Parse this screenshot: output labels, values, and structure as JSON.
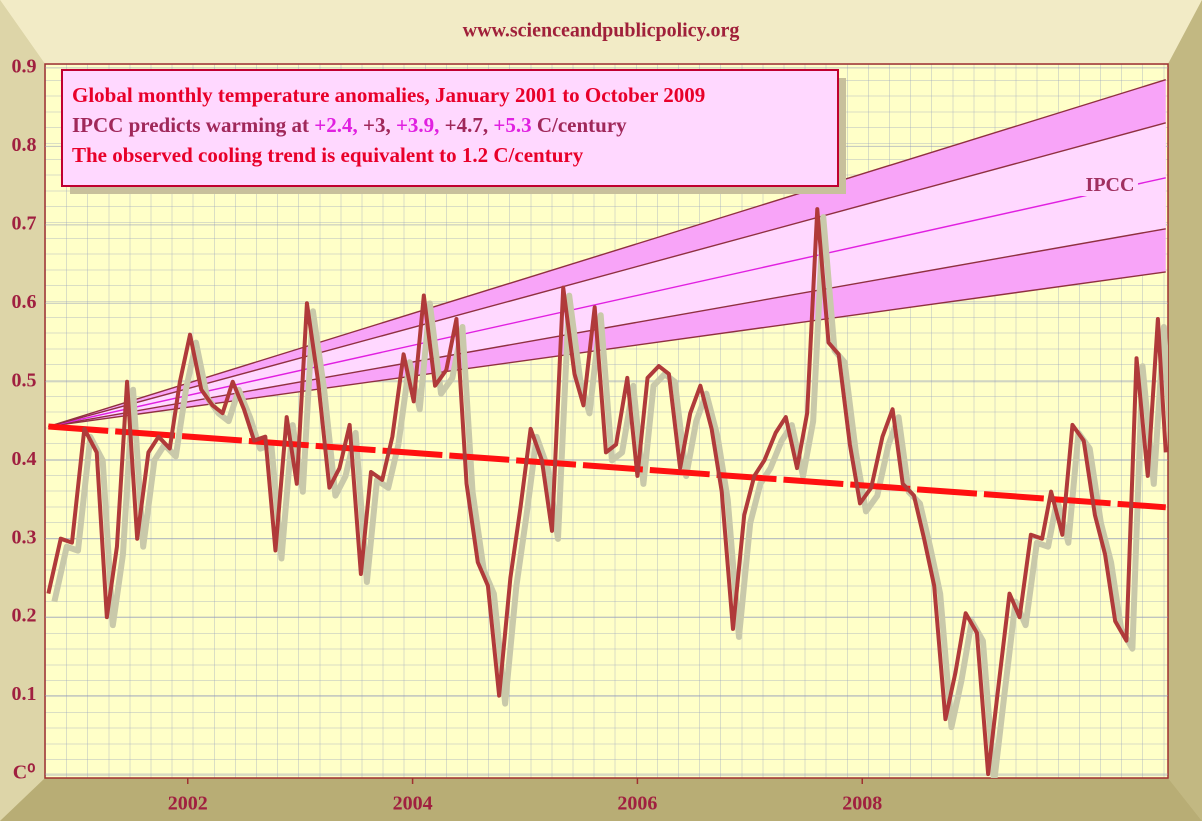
{
  "header": "www.scienceandpublicpolicy.org",
  "chart_data": {
    "type": "line",
    "title_lines": [
      {
        "text": "Global monthly temperature anomalies, January 2001 to October 2009",
        "color": "#e8002a"
      },
      {
        "parts": [
          {
            "text": "IPCC predicts warming at ",
            "color": "#a0285a"
          },
          {
            "text": "+2.4,",
            "color": "#e020e0"
          },
          {
            "text": " +3,",
            "color": "#a0285a"
          },
          {
            "text": " +3.9,",
            "color": "#e020e0"
          },
          {
            "text": " +4.7,",
            "color": "#a0285a"
          },
          {
            "text": " +5.3",
            "color": "#e020e0"
          },
          {
            "text": " C/century",
            "color": "#a0285a"
          }
        ]
      },
      {
        "text": "The observed cooling trend is equivalent to 1.2 C/century",
        "color": "#e8002a"
      }
    ],
    "xlim": [
      2000.73,
      2010.72
    ],
    "xticks": [
      2002,
      2004,
      2006,
      2008
    ],
    "ylim": [
      -0.005,
      0.905
    ],
    "yticks": [
      {
        "value": 0,
        "label": "C⁰"
      },
      0.1,
      0.2,
      0.3,
      0.4,
      0.5,
      0.6,
      0.7,
      0.8,
      0.9
    ],
    "grid": true,
    "series": [
      {
        "color": "#b03a3a",
        "shadow_color": "#c9c9aa",
        "x": [
          2000.76,
          2000.87,
          2000.97,
          2001.08,
          2001.19,
          2001.28,
          2001.37,
          2001.46,
          2001.55,
          2001.65,
          2001.74,
          2001.84,
          2001.93,
          2002.02,
          2002.12,
          2002.22,
          2002.31,
          2002.4,
          2002.5,
          2002.59,
          2002.69,
          2002.78,
          2002.88,
          2002.97,
          2003.06,
          2003.16,
          2003.26,
          2003.35,
          2003.44,
          2003.54,
          2003.63,
          2003.73,
          2003.82,
          2003.92,
          2004.01,
          2004.1,
          2004.2,
          2004.3,
          2004.39,
          2004.48,
          2004.58,
          2004.67,
          2004.77,
          2004.87,
          2004.96,
          2005.05,
          2005.15,
          2005.24,
          2005.34,
          2005.44,
          2005.52,
          2005.62,
          2005.72,
          2005.81,
          2005.91,
          2006.0,
          2006.09,
          2006.19,
          2006.28,
          2006.38,
          2006.47,
          2006.56,
          2006.66,
          2006.75,
          2006.85,
          2006.95,
          2007.04,
          2007.13,
          2007.23,
          2007.32,
          2007.42,
          2007.51,
          2007.6,
          2007.7,
          2007.79,
          2007.89,
          2007.98,
          2008.08,
          2008.18,
          2008.27,
          2008.36,
          2008.46,
          2008.55,
          2008.64,
          2008.74,
          2008.83,
          2008.92,
          2009.02,
          2009.12,
          2009.21,
          2009.31,
          2009.4,
          2009.5,
          2009.6,
          2009.68,
          2009.78,
          2009.87,
          2009.97,
          2010.07,
          2010.16,
          2010.25,
          2010.35,
          2010.44,
          2010.54,
          2010.63,
          2010.7
        ],
        "values": [
          0.23,
          0.3,
          0.295,
          0.44,
          0.41,
          0.2,
          0.29,
          0.5,
          0.3,
          0.41,
          0.43,
          0.415,
          0.5,
          0.56,
          0.49,
          0.47,
          0.46,
          0.5,
          0.465,
          0.425,
          0.43,
          0.285,
          0.455,
          0.37,
          0.6,
          0.5,
          0.365,
          0.39,
          0.445,
          0.255,
          0.385,
          0.375,
          0.43,
          0.535,
          0.475,
          0.61,
          0.495,
          0.515,
          0.58,
          0.37,
          0.27,
          0.24,
          0.1,
          0.25,
          0.34,
          0.44,
          0.4,
          0.31,
          0.62,
          0.51,
          0.47,
          0.595,
          0.41,
          0.42,
          0.505,
          0.38,
          0.505,
          0.52,
          0.51,
          0.39,
          0.46,
          0.495,
          0.44,
          0.36,
          0.185,
          0.33,
          0.38,
          0.4,
          0.435,
          0.455,
          0.39,
          0.46,
          0.72,
          0.55,
          0.535,
          0.42,
          0.345,
          0.365,
          0.43,
          0.465,
          0.37,
          0.355,
          0.3,
          0.24,
          0.07,
          0.13,
          0.205,
          0.18,
          0.0,
          0.11,
          0.23,
          0.2,
          0.305,
          0.3,
          0.36,
          0.305,
          0.445,
          0.425,
          0.33,
          0.28,
          0.195,
          0.17,
          0.53,
          0.38,
          0.58,
          0.41
        ]
      }
    ],
    "trend": {
      "x": [
        2000.76,
        2010.7
      ],
      "values": [
        0.443,
        0.34
      ],
      "color": "#ff1010"
    },
    "ipcc": {
      "label": "IPCC",
      "x": [
        2000.76,
        2010.7
      ],
      "band_colors": [
        "#f8a4f8",
        "#ffd8ff"
      ],
      "lines": [
        {
          "values": [
            0.443,
            0.64
          ],
          "color": "#903040"
        },
        {
          "values": [
            0.443,
            0.695
          ],
          "color": "#903040"
        },
        {
          "values": [
            0.443,
            0.76
          ],
          "color": "#e020e0"
        },
        {
          "values": [
            0.443,
            0.83
          ],
          "color": "#903040"
        },
        {
          "values": [
            0.443,
            0.885
          ],
          "color": "#903040"
        }
      ]
    }
  }
}
